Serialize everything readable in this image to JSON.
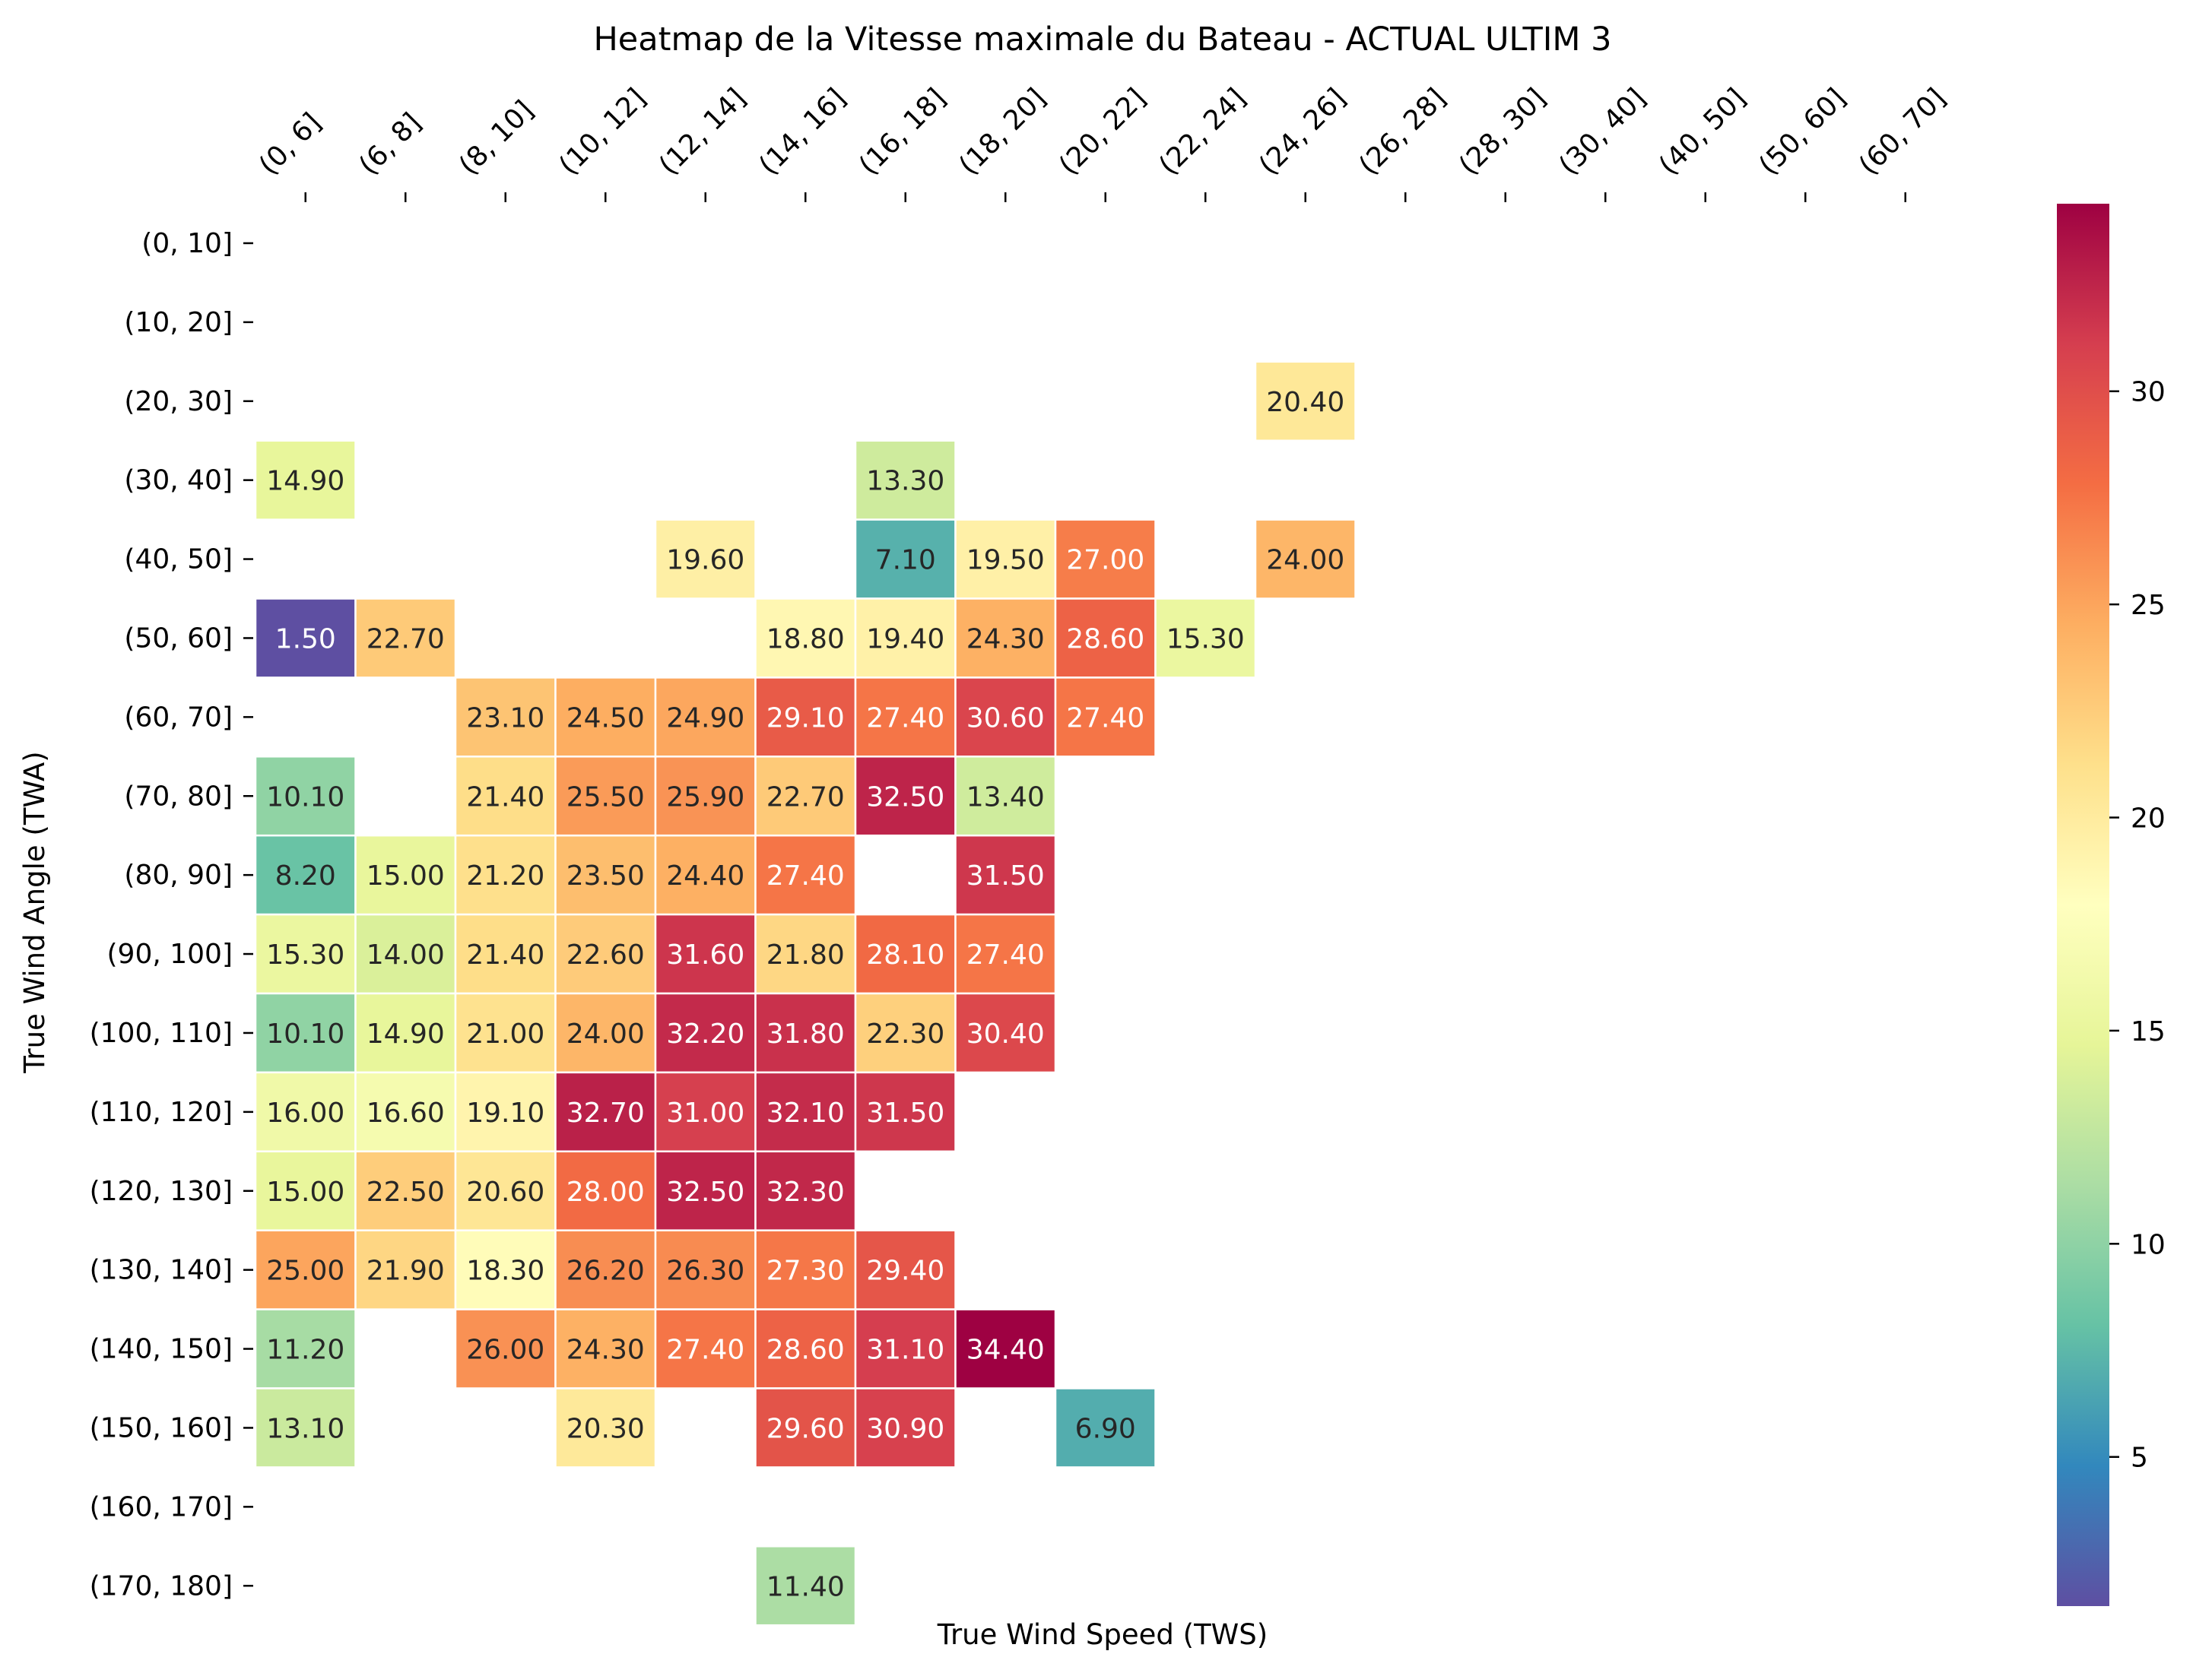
{
  "chart_data": {
    "type": "heatmap",
    "title": "Heatmap de la Vitesse maximale du Bateau - ACTUAL ULTIM 3",
    "xlabel": "True Wind Speed (TWS)",
    "ylabel": "True Wind Angle (TWA)",
    "x_categories": [
      "(0, 6]",
      "(6, 8]",
      "(8, 10]",
      "(10, 12]",
      "(12, 14]",
      "(14, 16]",
      "(16, 18]",
      "(18, 20]",
      "(20, 22]",
      "(22, 24]",
      "(24, 26]",
      "(26, 28]",
      "(28, 30]",
      "(30, 40]",
      "(40, 50]",
      "(50, 60]",
      "(60, 70]"
    ],
    "y_categories": [
      "(0, 10]",
      "(10, 20]",
      "(20, 30]",
      "(30, 40]",
      "(40, 50]",
      "(50, 60]",
      "(60, 70]",
      "(70, 80]",
      "(80, 90]",
      "(90, 100]",
      "(100, 110]",
      "(110, 120]",
      "(120, 130]",
      "(130, 140]",
      "(140, 150]",
      "(150, 160]",
      "(160, 170]",
      "(170, 180]"
    ],
    "values": [
      [
        null,
        null,
        null,
        null,
        null,
        null,
        null,
        null,
        null,
        null,
        null,
        null,
        null,
        null,
        null,
        null,
        null
      ],
      [
        null,
        null,
        null,
        null,
        null,
        null,
        null,
        null,
        null,
        null,
        null,
        null,
        null,
        null,
        null,
        null,
        null
      ],
      [
        null,
        null,
        null,
        null,
        null,
        null,
        null,
        null,
        null,
        null,
        20.4,
        null,
        null,
        null,
        null,
        null,
        null
      ],
      [
        14.9,
        null,
        null,
        null,
        null,
        null,
        13.3,
        null,
        null,
        null,
        null,
        null,
        null,
        null,
        null,
        null,
        null
      ],
      [
        null,
        null,
        null,
        null,
        19.6,
        null,
        7.1,
        19.5,
        27.0,
        null,
        24.0,
        null,
        null,
        null,
        null,
        null,
        null
      ],
      [
        1.5,
        22.7,
        null,
        null,
        null,
        18.8,
        19.4,
        24.3,
        28.6,
        15.3,
        null,
        null,
        null,
        null,
        null,
        null,
        null
      ],
      [
        null,
        null,
        23.1,
        24.5,
        24.9,
        29.1,
        27.4,
        30.6,
        27.4,
        null,
        null,
        null,
        null,
        null,
        null,
        null,
        null
      ],
      [
        10.1,
        null,
        21.4,
        25.5,
        25.9,
        22.7,
        32.5,
        13.4,
        null,
        null,
        null,
        null,
        null,
        null,
        null,
        null,
        null
      ],
      [
        8.2,
        15.0,
        21.2,
        23.5,
        24.4,
        27.4,
        null,
        31.5,
        null,
        null,
        null,
        null,
        null,
        null,
        null,
        null,
        null
      ],
      [
        15.3,
        14.0,
        21.4,
        22.6,
        31.6,
        21.8,
        28.1,
        27.4,
        null,
        null,
        null,
        null,
        null,
        null,
        null,
        null,
        null
      ],
      [
        10.1,
        14.9,
        21.0,
        24.0,
        32.2,
        31.8,
        22.3,
        30.4,
        null,
        null,
        null,
        null,
        null,
        null,
        null,
        null,
        null
      ],
      [
        16.0,
        16.6,
        19.1,
        32.7,
        31.0,
        32.1,
        31.5,
        null,
        null,
        null,
        null,
        null,
        null,
        null,
        null,
        null,
        null
      ],
      [
        15.0,
        22.5,
        20.6,
        28.0,
        32.5,
        32.3,
        null,
        null,
        null,
        null,
        null,
        null,
        null,
        null,
        null,
        null,
        null
      ],
      [
        25.0,
        21.9,
        18.3,
        26.2,
        26.3,
        27.3,
        29.4,
        null,
        null,
        null,
        null,
        null,
        null,
        null,
        null,
        null,
        null
      ],
      [
        11.2,
        null,
        26.0,
        24.3,
        27.4,
        28.6,
        31.1,
        34.4,
        null,
        null,
        null,
        null,
        null,
        null,
        null,
        null,
        null
      ],
      [
        13.1,
        null,
        null,
        20.3,
        null,
        29.6,
        30.9,
        null,
        6.9,
        null,
        null,
        null,
        null,
        null,
        null,
        null,
        null
      ],
      [
        null,
        null,
        null,
        null,
        null,
        null,
        null,
        null,
        null,
        null,
        null,
        null,
        null,
        null,
        null,
        null,
        null
      ],
      [
        null,
        null,
        null,
        null,
        null,
        11.4,
        null,
        null,
        null,
        null,
        null,
        null,
        null,
        null,
        null,
        null,
        null
      ]
    ],
    "value_format": "2 decimals",
    "colormap": "Spectral_r",
    "color_range": [
      1.5,
      34.4
    ],
    "colorbar_ticks": [
      5,
      10,
      15,
      20,
      25,
      30
    ],
    "cell_border_color": "#ffffff",
    "x_tick_position": "top"
  }
}
